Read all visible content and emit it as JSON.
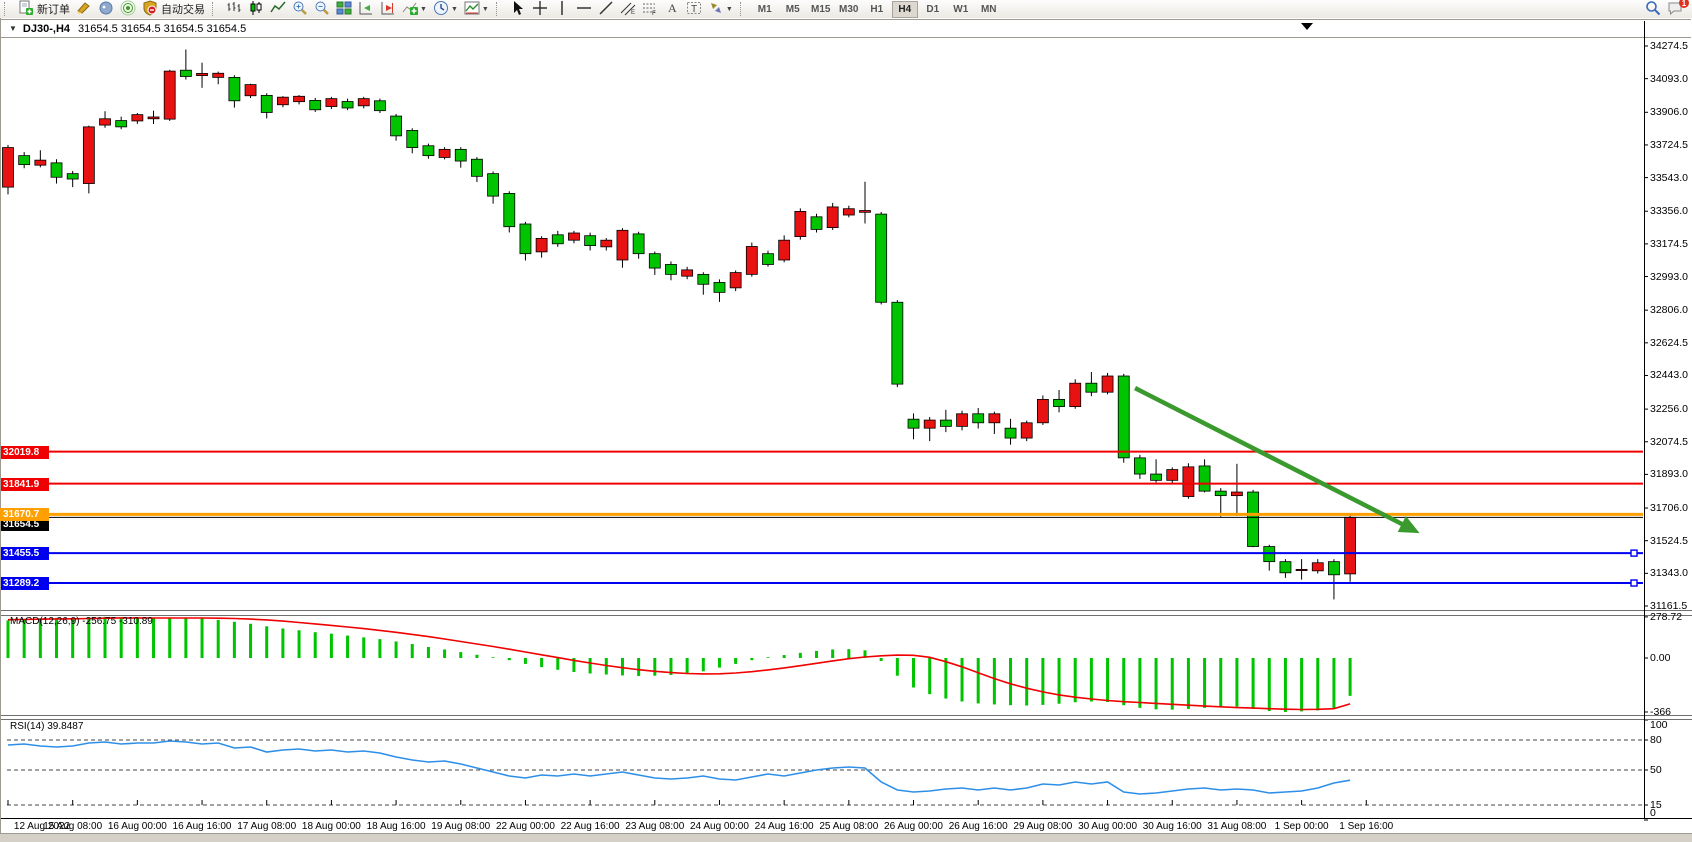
{
  "info": {
    "expander": "▼",
    "symbol_period": "DJ30-,H4",
    "ohlc": "31654.5 31654.5 31654.5 31654.5"
  },
  "toolbar": {
    "groups": [
      {
        "items": [
          {
            "icon": "new-order-icon",
            "label": "新订单"
          },
          {
            "icon": "styler-icon"
          },
          {
            "icon": "market-icon"
          },
          {
            "icon": "signals-icon"
          },
          {
            "icon": "autotrading-icon",
            "label": "自动交易"
          }
        ]
      },
      {
        "items": [
          {
            "icon": "bar-chart-icon"
          },
          {
            "icon": "candlestick-chart-icon"
          },
          {
            "icon": "line-chart-icon"
          },
          {
            "icon": "zoom-in-icon"
          },
          {
            "icon": "zoom-out-icon"
          },
          {
            "icon": "tile-windows-icon"
          },
          {
            "icon": "auto-scroll-icon"
          },
          {
            "icon": "chart-shift-icon"
          },
          {
            "icon": "indicators-icon",
            "dropdown": true
          },
          {
            "icon": "periods-icon",
            "dropdown": true
          },
          {
            "icon": "templates-icon",
            "dropdown": true
          }
        ]
      },
      {
        "items": [
          {
            "icon": "cursor-icon"
          },
          {
            "icon": "crosshair-icon"
          },
          {
            "icon": "vline-icon"
          },
          {
            "icon": "hline-icon"
          },
          {
            "icon": "trendline-icon"
          },
          {
            "icon": "channel-icon"
          },
          {
            "icon": "fibonacci-icon"
          },
          {
            "icon": "text-icon"
          },
          {
            "icon": "text-label-icon"
          },
          {
            "icon": "arrows-icon",
            "dropdown": true
          }
        ]
      }
    ],
    "timeframes": [
      {
        "label": "M1"
      },
      {
        "label": "M5"
      },
      {
        "label": "M15"
      },
      {
        "label": "M30"
      },
      {
        "label": "H1"
      },
      {
        "label": "H4",
        "active": true
      },
      {
        "label": "D1"
      },
      {
        "label": "W1"
      },
      {
        "label": "MN"
      }
    ],
    "right": [
      {
        "icon": "search-icon"
      },
      {
        "icon": "chat-icon",
        "badge": "1"
      }
    ]
  },
  "colors": {
    "bull": "#e81212",
    "bear": "#00c400",
    "wick": "#000000",
    "macd_hist": "#00c400",
    "macd_signal": "#f00000",
    "rsi": "#2e8fe8",
    "line_red": "#f00000",
    "line_blue": "#0000f0",
    "line_orange": "#ffa000",
    "line_black": "#000000",
    "arrow": "#3a9a2e"
  },
  "chart_data": {
    "type": "candlestick",
    "title": "DJ30-,H4",
    "main": {
      "ylim": [
        31139,
        34319
      ],
      "axis_ticks": [
        "34274.5",
        "34093.0",
        "33906.0",
        "33724.5",
        "33543.0",
        "33356.0",
        "33174.5",
        "32993.0",
        "32806.0",
        "32624.5",
        "32443.0",
        "32256.0",
        "32074.5",
        "31893.0",
        "31706.0",
        "31524.5",
        "31343.0",
        "31161.5"
      ],
      "candles": [
        [
          "12 Aug 16:00",
          33490,
          33725,
          33450,
          33710
        ],
        [
          "12 Aug 20:00",
          33665,
          33685,
          33595,
          33615
        ],
        [
          "15 Aug 00:00",
          33612,
          33695,
          33600,
          33640
        ],
        [
          "15 Aug 04:00",
          33625,
          33645,
          33510,
          33545
        ],
        [
          "15 Aug 08:00",
          33565,
          33580,
          33490,
          33535
        ],
        [
          "15 Aug 12:00",
          33510,
          33832,
          33455,
          33825
        ],
        [
          "15 Aug 16:00",
          33835,
          33912,
          33820,
          33870
        ],
        [
          "15 Aug 20:00",
          33860,
          33882,
          33812,
          33825
        ],
        [
          "16 Aug 00:00",
          33858,
          33902,
          33842,
          33893
        ],
        [
          "16 Aug 04:00",
          33870,
          33915,
          33841,
          33880
        ],
        [
          "16 Aug 08:00",
          33868,
          34142,
          33858,
          34135
        ],
        [
          "16 Aug 12:00",
          34140,
          34255,
          34088,
          34105
        ],
        [
          "16 Aug 16:00",
          34110,
          34182,
          34042,
          34122
        ],
        [
          "16 Aug 20:00",
          34100,
          34132,
          34062,
          34123
        ],
        [
          "17 Aug 00:00",
          34100,
          34112,
          33932,
          33970
        ],
        [
          "17 Aug 04:00",
          33998,
          34065,
          33985,
          34060
        ],
        [
          "17 Aug 08:00",
          34000,
          34012,
          33872,
          33905
        ],
        [
          "17 Aug 12:00",
          33948,
          33996,
          33934,
          33990
        ],
        [
          "17 Aug 16:00",
          33965,
          34002,
          33950,
          33995
        ],
        [
          "17 Aug 20:00",
          33972,
          33986,
          33908,
          33920
        ],
        [
          "18 Aug 00:00",
          33938,
          33992,
          33924,
          33982
        ],
        [
          "18 Aug 04:00",
          33966,
          33982,
          33918,
          33930
        ],
        [
          "18 Aug 08:00",
          33942,
          33992,
          33928,
          33982
        ],
        [
          "18 Aug 12:00",
          33970,
          33982,
          33902,
          33915
        ],
        [
          "18 Aug 16:00",
          33885,
          33897,
          33748,
          33775
        ],
        [
          "18 Aug 20:00",
          33805,
          33817,
          33678,
          33710
        ],
        [
          "19 Aug 00:00",
          33720,
          33732,
          33648,
          33665
        ],
        [
          "19 Aug 04:00",
          33655,
          33712,
          33644,
          33700
        ],
        [
          "19 Aug 08:00",
          33700,
          33712,
          33598,
          33635
        ],
        [
          "19 Aug 12:00",
          33645,
          33657,
          33518,
          33550
        ],
        [
          "19 Aug 16:00",
          33565,
          33577,
          33398,
          33440
        ],
        [
          "19 Aug 20:00",
          33455,
          33467,
          33238,
          33270
        ],
        [
          "22 Aug 00:00",
          33285,
          33297,
          33082,
          33120
        ],
        [
          "22 Aug 04:00",
          33130,
          33217,
          33098,
          33205
        ],
        [
          "22 Aug 08:00",
          33225,
          33247,
          33158,
          33175
        ],
        [
          "22 Aug 12:00",
          33195,
          33247,
          33178,
          33235
        ],
        [
          "22 Aug 16:00",
          33220,
          33237,
          33138,
          33165
        ],
        [
          "22 Aug 20:00",
          33158,
          33207,
          33138,
          33195
        ],
        [
          "23 Aug 00:00",
          33085,
          33262,
          33042,
          33250
        ],
        [
          "23 Aug 04:00",
          33230,
          33242,
          33092,
          33120
        ],
        [
          "23 Aug 08:00",
          33120,
          33132,
          33002,
          33040
        ],
        [
          "23 Aug 12:00",
          33060,
          33077,
          32972,
          33005
        ],
        [
          "23 Aug 16:00",
          32995,
          33047,
          32978,
          33030
        ],
        [
          "23 Aug 20:00",
          33005,
          33017,
          32892,
          32950
        ],
        [
          "24 Aug 00:00",
          32960,
          32977,
          32852,
          32905
        ],
        [
          "24 Aug 04:00",
          32930,
          33027,
          32912,
          33015
        ],
        [
          "24 Aug 08:00",
          33005,
          33182,
          32992,
          33160
        ],
        [
          "24 Aug 12:00",
          33120,
          33137,
          33048,
          33060
        ],
        [
          "24 Aug 16:00",
          33085,
          33222,
          33072,
          33195
        ],
        [
          "24 Aug 20:00",
          33215,
          33372,
          33198,
          33355
        ],
        [
          "25 Aug 00:00",
          33325,
          33342,
          33238,
          33255
        ],
        [
          "25 Aug 04:00",
          33265,
          33402,
          33252,
          33380
        ],
        [
          "25 Aug 08:00",
          33335,
          33387,
          33322,
          33370
        ],
        [
          "25 Aug 12:00",
          33350,
          33520,
          33288,
          33360
        ],
        [
          "25 Aug 16:00",
          33340,
          33352,
          32838,
          32850
        ],
        [
          "25 Aug 20:00",
          32850,
          32862,
          32378,
          32395
        ],
        [
          "26 Aug 00:00",
          32200,
          32232,
          32088,
          32150
        ],
        [
          "26 Aug 04:00",
          32150,
          32212,
          32078,
          32195
        ],
        [
          "26 Aug 08:00",
          32195,
          32252,
          32128,
          32160
        ],
        [
          "26 Aug 12:00",
          32160,
          32247,
          32138,
          32230
        ],
        [
          "26 Aug 16:00",
          32230,
          32262,
          32148,
          32180
        ],
        [
          "26 Aug 20:00",
          32180,
          32242,
          32118,
          32230
        ],
        [
          "29 Aug 00:00",
          32150,
          32202,
          32058,
          32095
        ],
        [
          "29 Aug 04:00",
          32095,
          32192,
          32078,
          32180
        ],
        [
          "29 Aug 08:00",
          32180,
          32332,
          32168,
          32310
        ],
        [
          "29 Aug 12:00",
          32310,
          32362,
          32238,
          32270
        ],
        [
          "29 Aug 16:00",
          32270,
          32422,
          32258,
          32400
        ],
        [
          "29 Aug 20:00",
          32400,
          32462,
          32328,
          32350
        ],
        [
          "30 Aug 00:00",
          32350,
          32457,
          32338,
          32440
        ],
        [
          "30 Aug 04:00",
          32440,
          32452,
          31958,
          31985
        ],
        [
          "30 Aug 08:00",
          31985,
          32002,
          31868,
          31895
        ],
        [
          "30 Aug 12:00",
          31895,
          31977,
          31848,
          31860
        ],
        [
          "30 Aug 16:00",
          31860,
          31932,
          31838,
          31920
        ],
        [
          "30 Aug 20:00",
          31770,
          31955,
          31758,
          31935
        ],
        [
          "31 Aug 00:00",
          31940,
          31977,
          31793,
          31800
        ],
        [
          "31 Aug 04:00",
          31800,
          31817,
          31658,
          31775
        ],
        [
          "31 Aug 08:00",
          31775,
          31952,
          31662,
          31795
        ],
        [
          "31 Aug 12:00",
          31795,
          31807,
          31488,
          31492
        ],
        [
          "31 Aug 16:00",
          31492,
          31502,
          31358,
          31408
        ],
        [
          "31 Aug 20:00",
          31408,
          31422,
          31318,
          31346
        ],
        [
          "1 Sep 00:00",
          31363,
          31422,
          31308,
          31365
        ],
        [
          "1 Sep 04:00",
          31357,
          31422,
          31342,
          31402
        ],
        [
          "1 Sep 08:00",
          31408,
          31422,
          31198,
          31335
        ],
        [
          "1 Sep 12:00",
          31340,
          31672,
          31296,
          31654.5
        ]
      ],
      "lines": [
        {
          "price": 32019.8,
          "label": "32019.8",
          "color": "line_red",
          "width": 2
        },
        {
          "price": 31841.9,
          "label": "31841.9",
          "color": "line_red",
          "width": 2
        },
        {
          "price": 31670.7,
          "label": "31670.7",
          "color": "line_orange",
          "width": 3
        },
        {
          "price": 31654.5,
          "label": "31654.5",
          "color": "line_black",
          "width": 1,
          "is_bid": true
        },
        {
          "price": 31455.5,
          "label": "31455.5",
          "color": "line_blue",
          "width": 2,
          "handles": true
        },
        {
          "price": 31289.2,
          "label": "31289.2",
          "color": "line_blue",
          "width": 2,
          "handles": true
        }
      ],
      "arrow": {
        "x1_bar": 69.7,
        "price1": 32373,
        "x2_bar": 87.3,
        "price2": 31567
      }
    },
    "macd": {
      "label": "MACD(12,26,9) -256.75 -310.89",
      "ylim": [
        -366,
        278.72
      ],
      "axis_labels": [
        {
          "v": 278.72,
          "label": "278.72"
        },
        {
          "v": 0,
          "label": "0.00"
        },
        {
          "v": -366,
          "label": "-366"
        }
      ],
      "hist": [
        255,
        262,
        268,
        272,
        270,
        274,
        278.72,
        276,
        272,
        268,
        270,
        273,
        268,
        258,
        245,
        232,
        215,
        200,
        188,
        175,
        165,
        152,
        140,
        128,
        112,
        95,
        75,
        58,
        40,
        22,
        5,
        -15,
        -40,
        -62,
        -80,
        -95,
        -105,
        -112,
        -118,
        -122,
        -120,
        -115,
        -105,
        -90,
        -65,
        -40,
        -15,
        5,
        20,
        35,
        48,
        58,
        60,
        52,
        -20,
        -120,
        -200,
        -245,
        -275,
        -295,
        -308,
        -315,
        -320,
        -322,
        -318,
        -310,
        -300,
        -295,
        -298,
        -320,
        -338,
        -348,
        -350,
        -345,
        -338,
        -332,
        -330,
        -345,
        -360,
        -366,
        -362,
        -355,
        -340,
        -256.75
      ],
      "signal": [
        260,
        261,
        263,
        265,
        266,
        268,
        270,
        272,
        272,
        271,
        271,
        271,
        271,
        270,
        268,
        264,
        258,
        250,
        241,
        231,
        221,
        210,
        199,
        187,
        174,
        160,
        145,
        129,
        112,
        95,
        78,
        60,
        41,
        22,
        3,
        -16,
        -34,
        -51,
        -66,
        -79,
        -90,
        -99,
        -105,
        -108,
        -107,
        -102,
        -93,
        -81,
        -67,
        -52,
        -36,
        -20,
        -5,
        7,
        15,
        20,
        18,
        5,
        -25,
        -60,
        -100,
        -140,
        -175,
        -205,
        -230,
        -250,
        -266,
        -278,
        -288,
        -296,
        -302,
        -308,
        -314,
        -320,
        -326,
        -331,
        -336,
        -340,
        -344,
        -347,
        -349,
        -348,
        -344,
        -310.89
      ]
    },
    "rsi": {
      "label": "RSI(14) 39.8487",
      "ylim": [
        0,
        100
      ],
      "levels": [
        80,
        50,
        15
      ],
      "axis_labels": [
        100,
        80,
        50,
        15,
        0
      ],
      "values": [
        75,
        76,
        74,
        73,
        74,
        77,
        78,
        76,
        77,
        77,
        79,
        78,
        76,
        77,
        72,
        73,
        68,
        70,
        71,
        69,
        70,
        68,
        69,
        67,
        63,
        60,
        58,
        59,
        56,
        52,
        48,
        44,
        42,
        45,
        44,
        46,
        44,
        46,
        48,
        45,
        42,
        41,
        42,
        44,
        41,
        40,
        43,
        46,
        44,
        47,
        50,
        52,
        53,
        52,
        38,
        30,
        28,
        29,
        31,
        32,
        30,
        32,
        30,
        32,
        36,
        35,
        38,
        36,
        38,
        28,
        26,
        27,
        29,
        31,
        32,
        30,
        31,
        30,
        27,
        28,
        29,
        32,
        37,
        39.8487
      ]
    },
    "x_axis": {
      "tick_labels": [
        "12 Aug 2022",
        "15 Aug 08:00",
        "16 Aug 00:00",
        "16 Aug 16:00",
        "17 Aug 08:00",
        "18 Aug 00:00",
        "18 Aug 16:00",
        "19 Aug 08:00",
        "22 Aug 00:00",
        "22 Aug 16:00",
        "23 Aug 08:00",
        "24 Aug 00:00",
        "24 Aug 16:00",
        "25 Aug 08:00",
        "26 Aug 00:00",
        "26 Aug 16:00",
        "29 Aug 08:00",
        "30 Aug 00:00",
        "30 Aug 16:00",
        "31 Aug 08:00",
        "1 Sep 00:00",
        "1 Sep 16:00"
      ]
    }
  }
}
